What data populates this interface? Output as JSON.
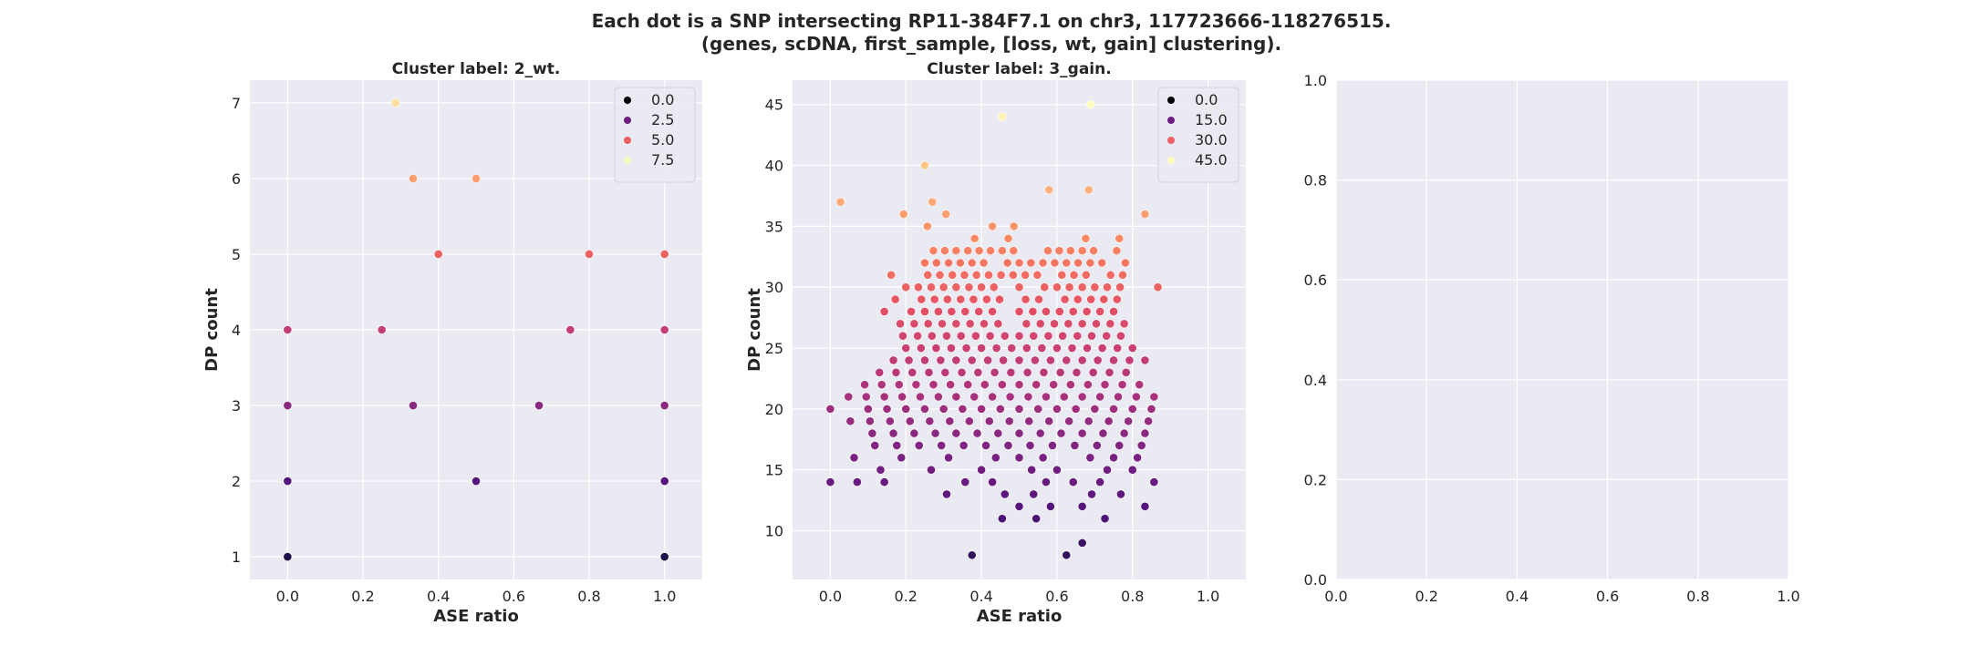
{
  "figure": {
    "title_line1": "Each dot is a SNP intersecting RP11-384F7.1 on chr3, 117723666-118276515.",
    "title_line2": "(genes, scDNA, first_sample, [loss, wt, gain] clustering)."
  },
  "chart_data": [
    {
      "type": "scatter",
      "title": "Cluster label: 2_wt.",
      "xlabel": "ASE ratio",
      "ylabel": "DP count",
      "xlim": [
        -0.1,
        1.1
      ],
      "ylim": [
        0.7,
        7.3
      ],
      "xticks": [
        0.0,
        0.2,
        0.4,
        0.6,
        0.8,
        1.0
      ],
      "yticks": [
        1,
        2,
        3,
        4,
        5,
        6,
        7
      ],
      "grid": true,
      "legend": {
        "placement": "top-right",
        "entries": [
          "0.0",
          "2.5",
          "5.0",
          "7.5"
        ]
      },
      "hue_range": [
        0,
        7.5
      ],
      "points": [
        [
          0.0,
          1
        ],
        [
          1.0,
          1
        ],
        [
          0.0,
          2
        ],
        [
          0.5,
          2
        ],
        [
          1.0,
          2
        ],
        [
          0.0,
          3
        ],
        [
          0.333,
          3
        ],
        [
          0.667,
          3
        ],
        [
          1.0,
          3
        ],
        [
          0.0,
          4
        ],
        [
          0.25,
          4
        ],
        [
          0.75,
          4
        ],
        [
          1.0,
          4
        ],
        [
          0.4,
          5
        ],
        [
          0.8,
          5
        ],
        [
          1.0,
          5
        ],
        [
          0.333,
          6
        ],
        [
          0.5,
          6
        ],
        [
          0.286,
          7
        ]
      ]
    },
    {
      "type": "scatter",
      "title": "Cluster label: 3_gain.",
      "xlabel": "ASE ratio",
      "ylabel": "DP count",
      "xlim": [
        -0.1,
        1.1
      ],
      "ylim": [
        6,
        47
      ],
      "xticks": [
        0.0,
        0.2,
        0.4,
        0.6,
        0.8,
        1.0
      ],
      "yticks": [
        10,
        15,
        20,
        25,
        30,
        35,
        40,
        45
      ],
      "grid": true,
      "legend": {
        "placement": "top-right",
        "entries": [
          "0.0",
          "15.0",
          "30.0",
          "45.0"
        ]
      },
      "hue_range": [
        0,
        45
      ],
      "points": [
        [
          0.375,
          8
        ],
        [
          0.625,
          8
        ],
        [
          0.667,
          9
        ],
        [
          0.455,
          11
        ],
        [
          0.545,
          11
        ],
        [
          0.727,
          11
        ],
        [
          0.5,
          12
        ],
        [
          0.583,
          12
        ],
        [
          0.667,
          12
        ],
        [
          0.833,
          12
        ],
        [
          0.308,
          13
        ],
        [
          0.462,
          13
        ],
        [
          0.538,
          13
        ],
        [
          0.692,
          13
        ],
        [
          0.769,
          13
        ],
        [
          0.0,
          14
        ],
        [
          0.071,
          14
        ],
        [
          0.143,
          14
        ],
        [
          0.357,
          14
        ],
        [
          0.429,
          14
        ],
        [
          0.571,
          14
        ],
        [
          0.643,
          14
        ],
        [
          0.714,
          14
        ],
        [
          0.857,
          14
        ],
        [
          0.133,
          15
        ],
        [
          0.267,
          15
        ],
        [
          0.4,
          15
        ],
        [
          0.533,
          15
        ],
        [
          0.6,
          15
        ],
        [
          0.733,
          15
        ],
        [
          0.8,
          15
        ],
        [
          0.063,
          16
        ],
        [
          0.188,
          16
        ],
        [
          0.313,
          16
        ],
        [
          0.438,
          16
        ],
        [
          0.5,
          16
        ],
        [
          0.563,
          16
        ],
        [
          0.688,
          16
        ],
        [
          0.75,
          16
        ],
        [
          0.813,
          16
        ],
        [
          0.118,
          17
        ],
        [
          0.176,
          17
        ],
        [
          0.235,
          17
        ],
        [
          0.294,
          17
        ],
        [
          0.353,
          17
        ],
        [
          0.412,
          17
        ],
        [
          0.471,
          17
        ],
        [
          0.529,
          17
        ],
        [
          0.588,
          17
        ],
        [
          0.647,
          17
        ],
        [
          0.706,
          17
        ],
        [
          0.765,
          17
        ],
        [
          0.824,
          17
        ],
        [
          0.111,
          18
        ],
        [
          0.167,
          18
        ],
        [
          0.222,
          18
        ],
        [
          0.278,
          18
        ],
        [
          0.333,
          18
        ],
        [
          0.389,
          18
        ],
        [
          0.444,
          18
        ],
        [
          0.5,
          18
        ],
        [
          0.556,
          18
        ],
        [
          0.611,
          18
        ],
        [
          0.667,
          18
        ],
        [
          0.722,
          18
        ],
        [
          0.778,
          18
        ],
        [
          0.833,
          18
        ],
        [
          0.053,
          19
        ],
        [
          0.105,
          19
        ],
        [
          0.158,
          19
        ],
        [
          0.211,
          19
        ],
        [
          0.263,
          19
        ],
        [
          0.316,
          19
        ],
        [
          0.368,
          19
        ],
        [
          0.421,
          19
        ],
        [
          0.474,
          19
        ],
        [
          0.526,
          19
        ],
        [
          0.579,
          19
        ],
        [
          0.632,
          19
        ],
        [
          0.684,
          19
        ],
        [
          0.737,
          19
        ],
        [
          0.789,
          19
        ],
        [
          0.842,
          19
        ],
        [
          0.0,
          20
        ],
        [
          0.1,
          20
        ],
        [
          0.15,
          20
        ],
        [
          0.2,
          20
        ],
        [
          0.25,
          20
        ],
        [
          0.3,
          20
        ],
        [
          0.35,
          20
        ],
        [
          0.4,
          20
        ],
        [
          0.45,
          20
        ],
        [
          0.5,
          20
        ],
        [
          0.55,
          20
        ],
        [
          0.6,
          20
        ],
        [
          0.65,
          20
        ],
        [
          0.7,
          20
        ],
        [
          0.75,
          20
        ],
        [
          0.8,
          20
        ],
        [
          0.85,
          20
        ],
        [
          0.048,
          21
        ],
        [
          0.095,
          21
        ],
        [
          0.143,
          21
        ],
        [
          0.19,
          21
        ],
        [
          0.238,
          21
        ],
        [
          0.286,
          21
        ],
        [
          0.333,
          21
        ],
        [
          0.381,
          21
        ],
        [
          0.429,
          21
        ],
        [
          0.476,
          21
        ],
        [
          0.524,
          21
        ],
        [
          0.571,
          21
        ],
        [
          0.619,
          21
        ],
        [
          0.667,
          21
        ],
        [
          0.714,
          21
        ],
        [
          0.762,
          21
        ],
        [
          0.81,
          21
        ],
        [
          0.857,
          21
        ],
        [
          0.091,
          22
        ],
        [
          0.136,
          22
        ],
        [
          0.182,
          22
        ],
        [
          0.227,
          22
        ],
        [
          0.273,
          22
        ],
        [
          0.318,
          22
        ],
        [
          0.364,
          22
        ],
        [
          0.409,
          22
        ],
        [
          0.455,
          22
        ],
        [
          0.5,
          22
        ],
        [
          0.545,
          22
        ],
        [
          0.591,
          22
        ],
        [
          0.636,
          22
        ],
        [
          0.682,
          22
        ],
        [
          0.727,
          22
        ],
        [
          0.773,
          22
        ],
        [
          0.818,
          22
        ],
        [
          0.13,
          23
        ],
        [
          0.174,
          23
        ],
        [
          0.217,
          23
        ],
        [
          0.261,
          23
        ],
        [
          0.304,
          23
        ],
        [
          0.348,
          23
        ],
        [
          0.391,
          23
        ],
        [
          0.435,
          23
        ],
        [
          0.478,
          23
        ],
        [
          0.522,
          23
        ],
        [
          0.565,
          23
        ],
        [
          0.609,
          23
        ],
        [
          0.652,
          23
        ],
        [
          0.696,
          23
        ],
        [
          0.739,
          23
        ],
        [
          0.783,
          23
        ],
        [
          0.167,
          24
        ],
        [
          0.208,
          24
        ],
        [
          0.25,
          24
        ],
        [
          0.292,
          24
        ],
        [
          0.333,
          24
        ],
        [
          0.375,
          24
        ],
        [
          0.417,
          24
        ],
        [
          0.458,
          24
        ],
        [
          0.5,
          24
        ],
        [
          0.542,
          24
        ],
        [
          0.583,
          24
        ],
        [
          0.625,
          24
        ],
        [
          0.667,
          24
        ],
        [
          0.708,
          24
        ],
        [
          0.75,
          24
        ],
        [
          0.792,
          24
        ],
        [
          0.833,
          24
        ],
        [
          0.2,
          25
        ],
        [
          0.24,
          25
        ],
        [
          0.28,
          25
        ],
        [
          0.32,
          25
        ],
        [
          0.36,
          25
        ],
        [
          0.4,
          25
        ],
        [
          0.44,
          25
        ],
        [
          0.48,
          25
        ],
        [
          0.52,
          25
        ],
        [
          0.56,
          25
        ],
        [
          0.6,
          25
        ],
        [
          0.64,
          25
        ],
        [
          0.68,
          25
        ],
        [
          0.72,
          25
        ],
        [
          0.76,
          25
        ],
        [
          0.8,
          25
        ],
        [
          0.192,
          26
        ],
        [
          0.231,
          26
        ],
        [
          0.269,
          26
        ],
        [
          0.308,
          26
        ],
        [
          0.346,
          26
        ],
        [
          0.385,
          26
        ],
        [
          0.423,
          26
        ],
        [
          0.462,
          26
        ],
        [
          0.5,
          26
        ],
        [
          0.538,
          26
        ],
        [
          0.577,
          26
        ],
        [
          0.615,
          26
        ],
        [
          0.654,
          26
        ],
        [
          0.692,
          26
        ],
        [
          0.731,
          26
        ],
        [
          0.769,
          26
        ],
        [
          0.185,
          27
        ],
        [
          0.222,
          27
        ],
        [
          0.259,
          27
        ],
        [
          0.296,
          27
        ],
        [
          0.333,
          27
        ],
        [
          0.37,
          27
        ],
        [
          0.407,
          27
        ],
        [
          0.444,
          27
        ],
        [
          0.519,
          27
        ],
        [
          0.556,
          27
        ],
        [
          0.593,
          27
        ],
        [
          0.63,
          27
        ],
        [
          0.667,
          27
        ],
        [
          0.704,
          27
        ],
        [
          0.741,
          27
        ],
        [
          0.778,
          27
        ],
        [
          0.143,
          28
        ],
        [
          0.214,
          28
        ],
        [
          0.25,
          28
        ],
        [
          0.286,
          28
        ],
        [
          0.321,
          28
        ],
        [
          0.357,
          28
        ],
        [
          0.393,
          28
        ],
        [
          0.429,
          28
        ],
        [
          0.5,
          28
        ],
        [
          0.536,
          28
        ],
        [
          0.571,
          28
        ],
        [
          0.607,
          28
        ],
        [
          0.643,
          28
        ],
        [
          0.679,
          28
        ],
        [
          0.714,
          28
        ],
        [
          0.75,
          28
        ],
        [
          0.172,
          29
        ],
        [
          0.241,
          29
        ],
        [
          0.276,
          29
        ],
        [
          0.31,
          29
        ],
        [
          0.345,
          29
        ],
        [
          0.379,
          29
        ],
        [
          0.414,
          29
        ],
        [
          0.448,
          29
        ],
        [
          0.517,
          29
        ],
        [
          0.552,
          29
        ],
        [
          0.621,
          29
        ],
        [
          0.655,
          29
        ],
        [
          0.69,
          29
        ],
        [
          0.724,
          29
        ],
        [
          0.759,
          29
        ],
        [
          0.2,
          30
        ],
        [
          0.233,
          30
        ],
        [
          0.267,
          30
        ],
        [
          0.3,
          30
        ],
        [
          0.333,
          30
        ],
        [
          0.367,
          30
        ],
        [
          0.4,
          30
        ],
        [
          0.433,
          30
        ],
        [
          0.5,
          30
        ],
        [
          0.567,
          30
        ],
        [
          0.6,
          30
        ],
        [
          0.633,
          30
        ],
        [
          0.667,
          30
        ],
        [
          0.7,
          30
        ],
        [
          0.733,
          30
        ],
        [
          0.767,
          30
        ],
        [
          0.867,
          30
        ],
        [
          0.161,
          31
        ],
        [
          0.258,
          31
        ],
        [
          0.29,
          31
        ],
        [
          0.323,
          31
        ],
        [
          0.355,
          31
        ],
        [
          0.387,
          31
        ],
        [
          0.419,
          31
        ],
        [
          0.452,
          31
        ],
        [
          0.484,
          31
        ],
        [
          0.516,
          31
        ],
        [
          0.548,
          31
        ],
        [
          0.613,
          31
        ],
        [
          0.645,
          31
        ],
        [
          0.677,
          31
        ],
        [
          0.742,
          31
        ],
        [
          0.774,
          31
        ],
        [
          0.25,
          32
        ],
        [
          0.281,
          32
        ],
        [
          0.313,
          32
        ],
        [
          0.344,
          32
        ],
        [
          0.375,
          32
        ],
        [
          0.406,
          32
        ],
        [
          0.469,
          32
        ],
        [
          0.5,
          32
        ],
        [
          0.531,
          32
        ],
        [
          0.563,
          32
        ],
        [
          0.594,
          32
        ],
        [
          0.625,
          32
        ],
        [
          0.656,
          32
        ],
        [
          0.688,
          32
        ],
        [
          0.719,
          32
        ],
        [
          0.781,
          32
        ],
        [
          0.273,
          33
        ],
        [
          0.303,
          33
        ],
        [
          0.333,
          33
        ],
        [
          0.364,
          33
        ],
        [
          0.394,
          33
        ],
        [
          0.424,
          33
        ],
        [
          0.455,
          33
        ],
        [
          0.485,
          33
        ],
        [
          0.576,
          33
        ],
        [
          0.606,
          33
        ],
        [
          0.636,
          33
        ],
        [
          0.667,
          33
        ],
        [
          0.697,
          33
        ],
        [
          0.758,
          33
        ],
        [
          0.382,
          34
        ],
        [
          0.471,
          34
        ],
        [
          0.676,
          34
        ],
        [
          0.765,
          34
        ],
        [
          0.257,
          35
        ],
        [
          0.429,
          35
        ],
        [
          0.486,
          35
        ],
        [
          0.194,
          36
        ],
        [
          0.306,
          36
        ],
        [
          0.833,
          36
        ],
        [
          0.027,
          37
        ],
        [
          0.27,
          37
        ],
        [
          0.579,
          38
        ],
        [
          0.684,
          38
        ],
        [
          0.25,
          40
        ],
        [
          0.455,
          44
        ],
        [
          0.689,
          45
        ]
      ]
    },
    {
      "type": "scatter",
      "title": "",
      "xlabel": "",
      "ylabel": "",
      "xlim": [
        0,
        1
      ],
      "ylim": [
        0,
        1
      ],
      "xticks": [
        0.0,
        0.2,
        0.4,
        0.6,
        0.8,
        1.0
      ],
      "yticks": [
        0.0,
        0.2,
        0.4,
        0.6,
        0.8,
        1.0
      ],
      "grid": true,
      "points": []
    }
  ],
  "colors": {
    "panel_bg": "#eaeaf2",
    "grid": "#ffffff",
    "text": "#262626",
    "colormap": "magma"
  }
}
